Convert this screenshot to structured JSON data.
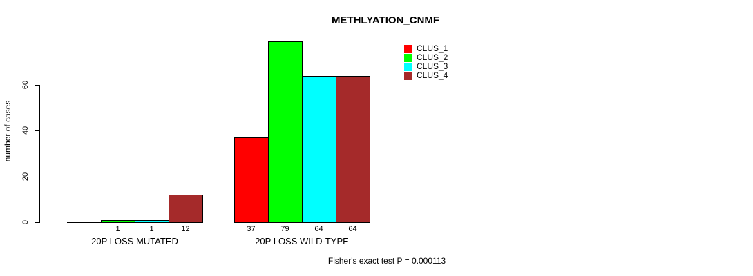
{
  "chart_data": {
    "type": "bar",
    "title": "METHLYATION_CNMF",
    "ylabel": "number of cases",
    "xlabel": "",
    "yticks": [
      0,
      20,
      40,
      60
    ],
    "ylim": [
      0,
      80
    ],
    "grid": false,
    "legend_position": "top-right",
    "categories": [
      "20P LOSS MUTATED",
      "20P LOSS WILD-TYPE"
    ],
    "groups": [
      {
        "label": "20P LOSS MUTATED",
        "bar_labels": [
          "",
          "1",
          "1",
          "12"
        ]
      },
      {
        "label": "20P LOSS WILD-TYPE",
        "bar_labels": [
          "37",
          "79",
          "64",
          "64"
        ]
      }
    ],
    "series": [
      {
        "name": "CLUS_1",
        "color": "#FF0000",
        "values": [
          0,
          37
        ]
      },
      {
        "name": "CLUS_2",
        "color": "#00FF00",
        "values": [
          1,
          79
        ]
      },
      {
        "name": "CLUS_3",
        "color": "#00FFFF",
        "values": [
          1,
          64
        ]
      },
      {
        "name": "CLUS_4",
        "color": "#A52A2A",
        "values": [
          12,
          64
        ]
      }
    ],
    "annotation": "Fisher's exact test P = 0.000113",
    "colors": {
      "axis": "#000000",
      "text": "#000000",
      "background": "#FFFFFF"
    }
  }
}
